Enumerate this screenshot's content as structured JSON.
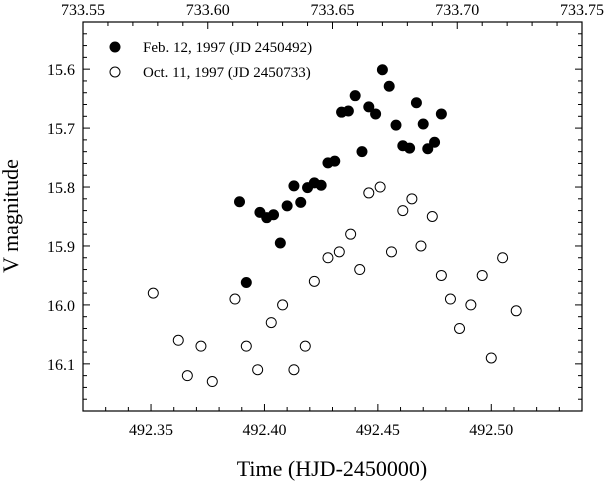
{
  "chart_data": {
    "type": "scatter",
    "xlabel": "Time (HJD-2450000)",
    "ylabel": "V magnitude",
    "xlim": [
      492.32,
      492.54
    ],
    "ylim": [
      16.18,
      15.52
    ],
    "y_inverted": true,
    "x_ticks": [
      492.35,
      492.4,
      492.45,
      492.5
    ],
    "x_tick_labels": [
      "492.35",
      "492.40",
      "492.45",
      "492.50"
    ],
    "y_ticks": [
      15.6,
      15.7,
      15.8,
      15.9,
      16.0,
      16.1
    ],
    "y_tick_labels": [
      "15.6",
      "15.7",
      "15.8",
      "15.9",
      "16.0",
      "16.1"
    ],
    "top_axis_ticks": [
      733.55,
      733.6,
      733.65,
      733.7,
      733.75
    ],
    "top_axis_tick_labels": [
      "733.55",
      "733.60",
      "733.65",
      "733.70",
      "733.75"
    ],
    "legend_position": "top-left",
    "grid": false,
    "series": [
      {
        "name": "Feb. 12, 1997 (JD 2450492)",
        "marker": "filled-circle",
        "color": "#000000",
        "points": [
          [
            492.389,
            15.825
          ],
          [
            492.392,
            15.962
          ],
          [
            492.398,
            15.843
          ],
          [
            492.401,
            15.852
          ],
          [
            492.404,
            15.847
          ],
          [
            492.407,
            15.895
          ],
          [
            492.41,
            15.832
          ],
          [
            492.413,
            15.798
          ],
          [
            492.416,
            15.826
          ],
          [
            492.419,
            15.801
          ],
          [
            492.422,
            15.793
          ],
          [
            492.425,
            15.797
          ],
          [
            492.428,
            15.759
          ],
          [
            492.431,
            15.756
          ],
          [
            492.434,
            15.673
          ],
          [
            492.437,
            15.671
          ],
          [
            492.44,
            15.645
          ],
          [
            492.443,
            15.74
          ],
          [
            492.446,
            15.664
          ],
          [
            492.449,
            15.676
          ],
          [
            492.452,
            15.601
          ],
          [
            492.455,
            15.629
          ],
          [
            492.458,
            15.695
          ],
          [
            492.461,
            15.73
          ],
          [
            492.464,
            15.734
          ],
          [
            492.467,
            15.657
          ],
          [
            492.47,
            15.693
          ],
          [
            492.472,
            15.735
          ],
          [
            492.475,
            15.724
          ],
          [
            492.478,
            15.676
          ]
        ]
      },
      {
        "name": "Oct. 11, 1997 (JD 2450733)",
        "marker": "open-circle",
        "color": "#000000",
        "points": [
          [
            492.351,
            15.98
          ],
          [
            492.362,
            16.06
          ],
          [
            492.366,
            16.12
          ],
          [
            492.372,
            16.07
          ],
          [
            492.377,
            16.13
          ],
          [
            492.387,
            15.99
          ],
          [
            492.392,
            16.07
          ],
          [
            492.397,
            16.11
          ],
          [
            492.403,
            16.03
          ],
          [
            492.408,
            16.0
          ],
          [
            492.413,
            16.11
          ],
          [
            492.418,
            16.07
          ],
          [
            492.422,
            15.96
          ],
          [
            492.428,
            15.92
          ],
          [
            492.433,
            15.91
          ],
          [
            492.438,
            15.88
          ],
          [
            492.442,
            15.94
          ],
          [
            492.446,
            15.81
          ],
          [
            492.451,
            15.8
          ],
          [
            492.456,
            15.91
          ],
          [
            492.461,
            15.84
          ],
          [
            492.465,
            15.82
          ],
          [
            492.469,
            15.9
          ],
          [
            492.474,
            15.85
          ],
          [
            492.478,
            15.95
          ],
          [
            492.482,
            15.99
          ],
          [
            492.486,
            16.04
          ],
          [
            492.491,
            16.0
          ],
          [
            492.496,
            15.95
          ],
          [
            492.5,
            16.09
          ],
          [
            492.505,
            15.92
          ],
          [
            492.511,
            16.01
          ]
        ]
      }
    ]
  }
}
